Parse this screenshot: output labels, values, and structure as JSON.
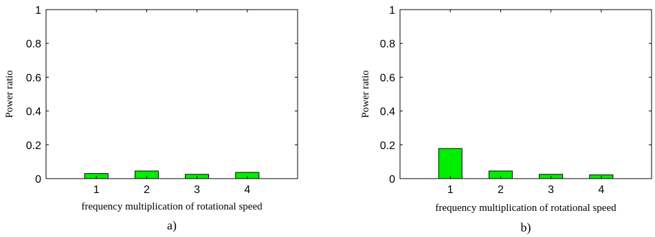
{
  "chart_data": [
    {
      "type": "bar",
      "categories": [
        "1",
        "2",
        "3",
        "4"
      ],
      "values": [
        0.03,
        0.045,
        0.025,
        0.037
      ],
      "xlabel": "frequency multiplication of rotational speed",
      "ylabel": "Power ratio",
      "ylim": [
        0,
        1
      ],
      "yticks": [
        "0",
        "0.2",
        "0.4",
        "0.6",
        "0.8",
        "1"
      ],
      "caption": "a)",
      "bar_color": "#00ee00",
      "grid": false
    },
    {
      "type": "bar",
      "categories": [
        "1",
        "2",
        "3",
        "4"
      ],
      "values": [
        0.178,
        0.045,
        0.025,
        0.022
      ],
      "xlabel": "frequency multiplication of rotational speed",
      "ylabel": "Power ratio",
      "ylim": [
        0,
        1
      ],
      "yticks": [
        "0",
        "0.2",
        "0.4",
        "0.6",
        "0.8",
        "1"
      ],
      "caption": "b)",
      "bar_color": "#00ee00",
      "grid": false
    }
  ]
}
